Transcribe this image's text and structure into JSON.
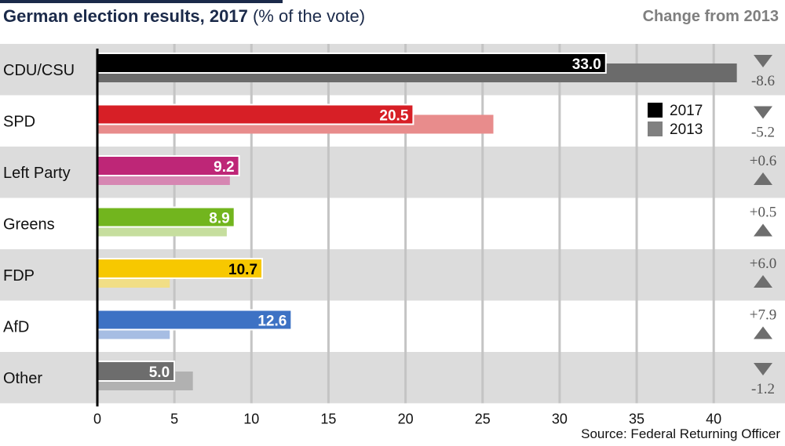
{
  "header": {
    "title_bold": "German election results, 2017",
    "title_sub": "(% of the vote)",
    "change_title": "Change from 2013"
  },
  "footer": {
    "source": "Source: Federal Returning Officer"
  },
  "chart_data": {
    "type": "bar",
    "orientation": "horizontal",
    "categories": [
      "CDU/CSU",
      "SPD",
      "Left Party",
      "Greens",
      "FDP",
      "AfD",
      "Other"
    ],
    "series": [
      {
        "name": "2017",
        "values": [
          33.0,
          20.5,
          9.2,
          8.9,
          10.7,
          12.6,
          5.0
        ]
      },
      {
        "name": "2013",
        "values": [
          41.5,
          25.7,
          8.6,
          8.4,
          4.7,
          4.7,
          6.2
        ]
      }
    ],
    "value_labels": [
      "33.0",
      "20.5",
      "9.2",
      "8.9",
      "10.7",
      "12.6",
      "5.0"
    ],
    "change": [
      "-8.6",
      "-5.2",
      "+0.6",
      "+0.5",
      "+6.0",
      "+7.9",
      "-1.2"
    ],
    "change_direction": [
      "down",
      "down",
      "up",
      "up",
      "up",
      "up",
      "down"
    ],
    "colors_2017": [
      "#000000",
      "#d71f26",
      "#be2677",
      "#72b51e",
      "#f7c800",
      "#3d72c4",
      "#6d6d6d"
    ],
    "colors_2013": [
      "#6b6b6b",
      "#e88c8c",
      "#d686b2",
      "#c6de9e",
      "#f1de86",
      "#a6bde3",
      "#b1b1b1"
    ],
    "label_colors": [
      "#ffffff",
      "#ffffff",
      "#ffffff",
      "#ffffff",
      "#000000",
      "#ffffff",
      "#ffffff"
    ],
    "legend": [
      "2017",
      "2013"
    ],
    "legend_colors": [
      "#000000",
      "#808080"
    ],
    "legend_position": "top-right",
    "x_ticks": [
      "0",
      "5",
      "10",
      "15",
      "20",
      "25",
      "30",
      "35",
      "40"
    ],
    "xlim": [
      0,
      44
    ],
    "grid": true,
    "stripe_color": "#dcdcdc",
    "triangle_color": "#6e6e6e"
  }
}
